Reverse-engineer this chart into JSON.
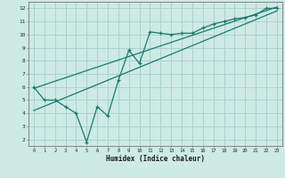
{
  "xlabel": "Humidex (Indice chaleur)",
  "bg_color": "#cdeae4",
  "line_color": "#1a7a6e",
  "grid_color": "#aad4cc",
  "xlim": [
    -0.5,
    23.5
  ],
  "ylim": [
    1.5,
    12.5
  ],
  "xticks": [
    0,
    1,
    2,
    3,
    4,
    5,
    6,
    7,
    8,
    9,
    10,
    11,
    12,
    13,
    14,
    15,
    16,
    17,
    18,
    19,
    20,
    21,
    22,
    23
  ],
  "yticks": [
    2,
    3,
    4,
    5,
    6,
    7,
    8,
    9,
    10,
    11,
    12
  ],
  "data_x": [
    0,
    1,
    2,
    3,
    4,
    5,
    6,
    7,
    8,
    9,
    10,
    11,
    12,
    13,
    14,
    15,
    16,
    17,
    18,
    19,
    20,
    21,
    22,
    23
  ],
  "data_y": [
    6.0,
    5.0,
    5.0,
    4.5,
    4.0,
    1.8,
    4.5,
    3.8,
    6.5,
    8.8,
    7.8,
    10.2,
    10.1,
    10.0,
    10.1,
    10.1,
    10.5,
    10.8,
    11.0,
    11.2,
    11.3,
    11.5,
    12.0,
    12.0
  ],
  "line1_x": [
    0,
    23
  ],
  "line1_y": [
    5.9,
    12.1
  ],
  "line2_x": [
    0,
    23
  ],
  "line2_y": [
    4.2,
    11.8
  ]
}
